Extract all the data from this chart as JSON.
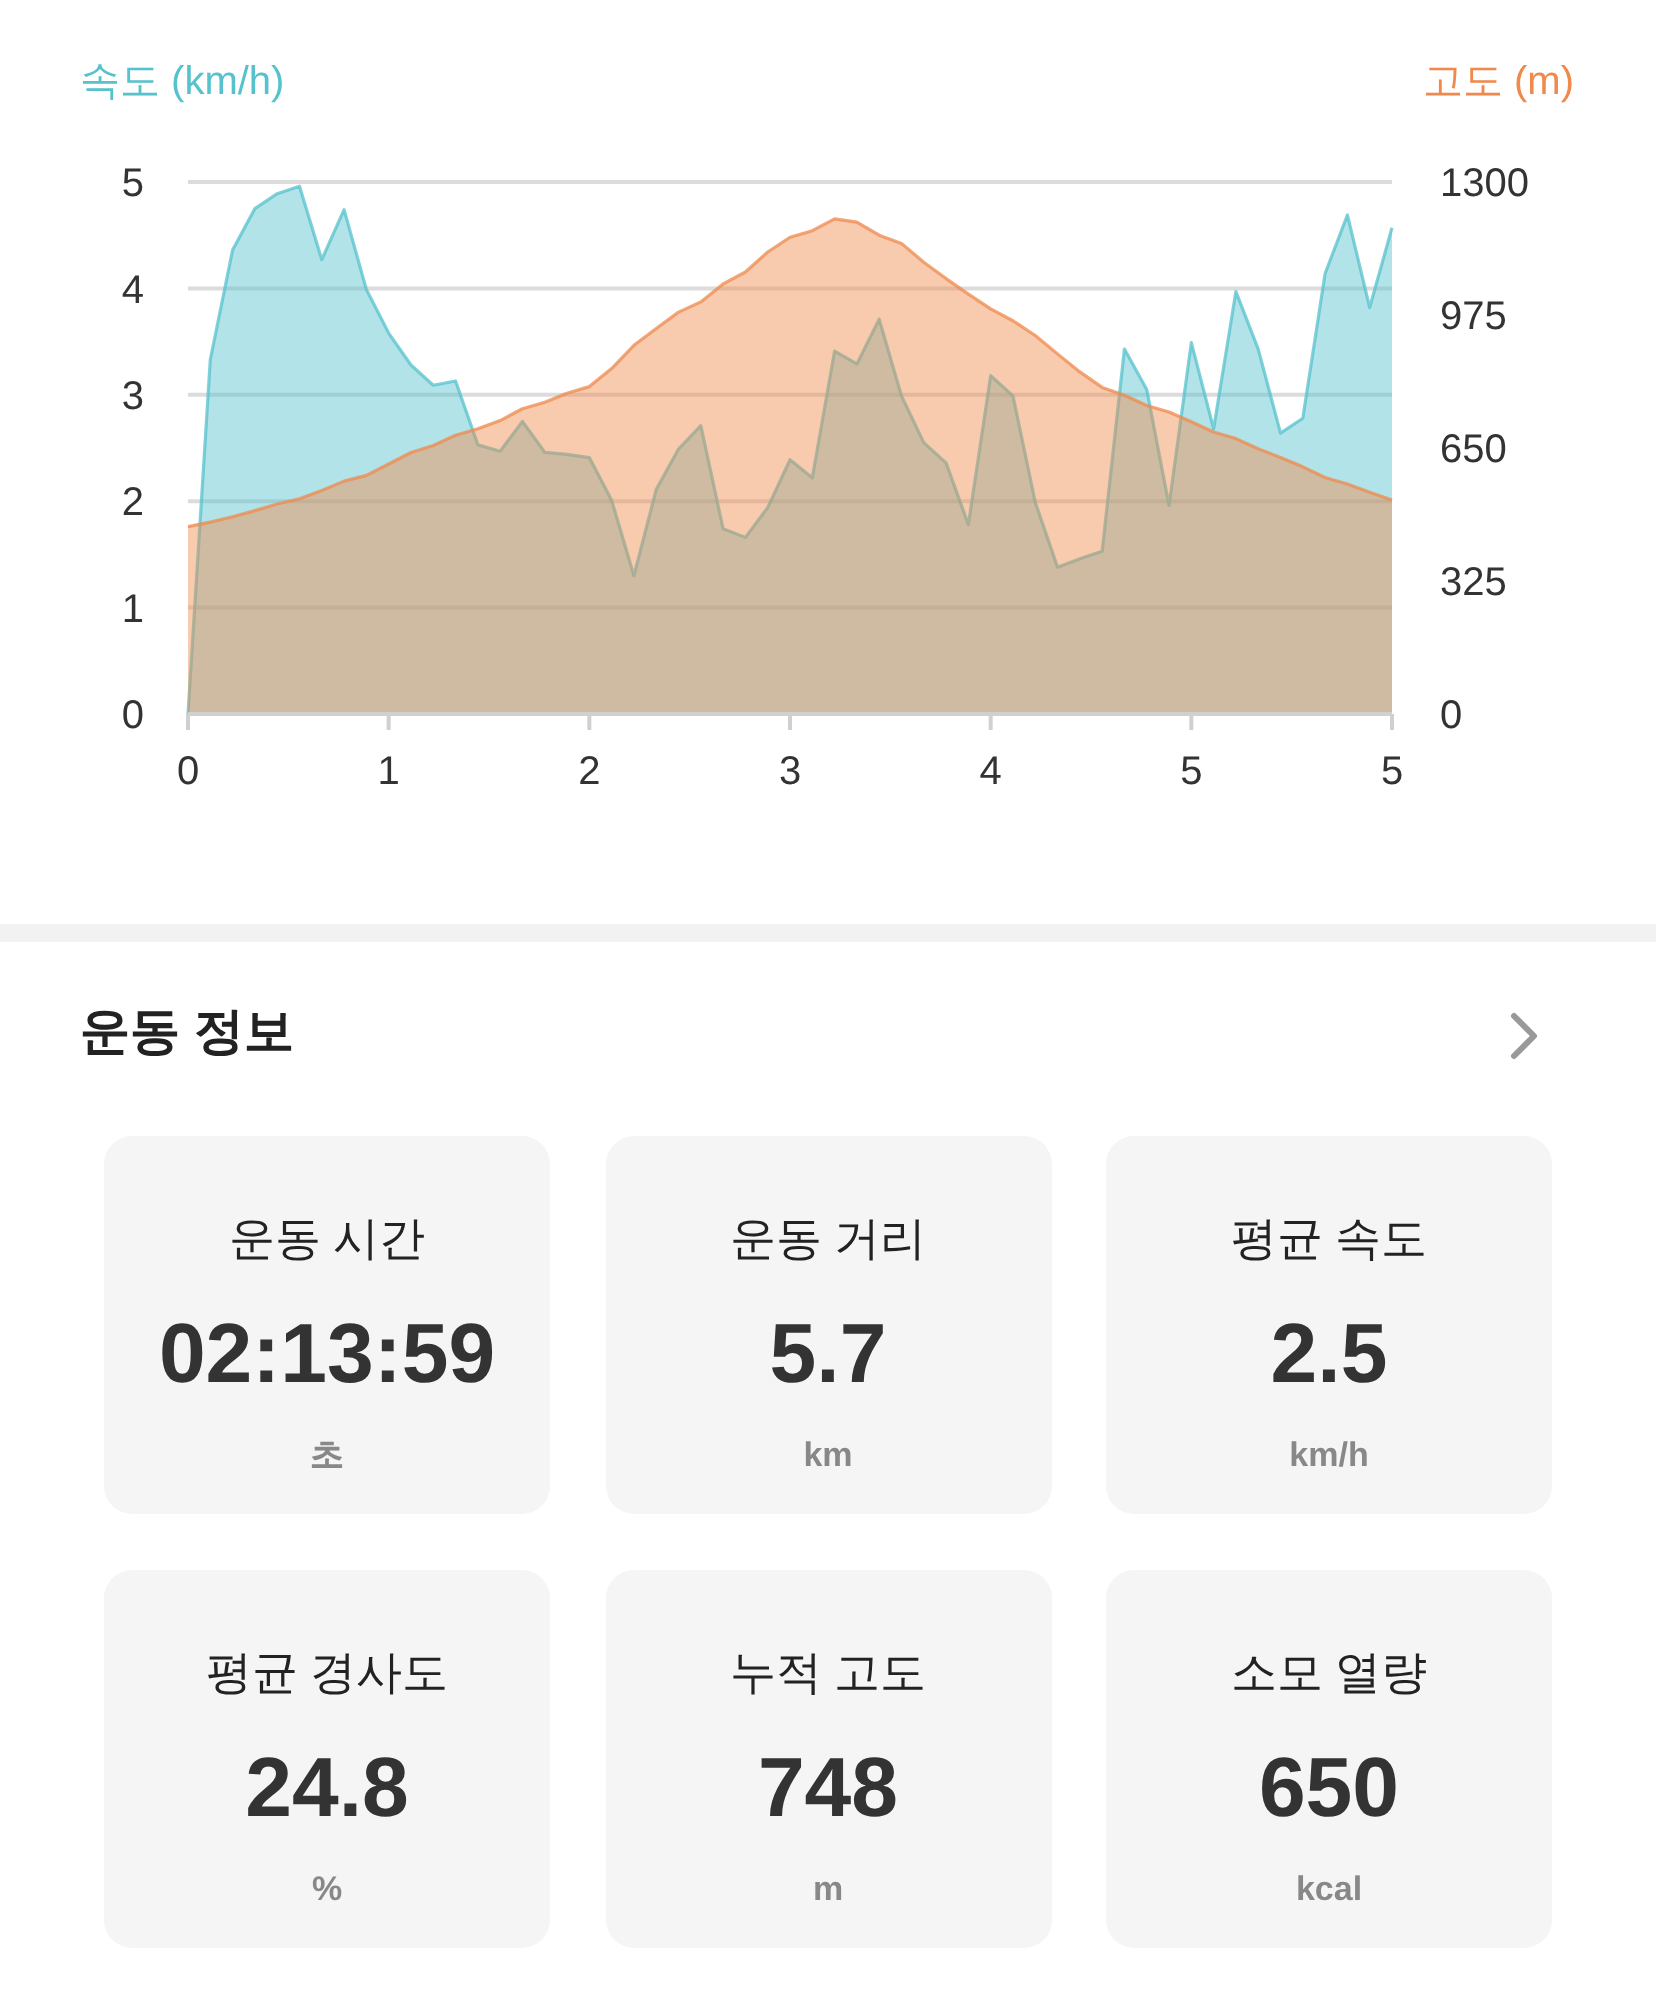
{
  "chart_data": [
    {
      "type": "area",
      "ylabel": "속도 (km/h)",
      "y2label": "고도 (m)",
      "categories": [
        "0",
        null,
        null,
        null,
        null,
        null,
        null,
        null,
        null,
        "1",
        null,
        null,
        null,
        null,
        null,
        null,
        null,
        null,
        "2",
        null,
        null,
        null,
        null,
        null,
        null,
        null,
        null,
        "3",
        null,
        null,
        null,
        null,
        null,
        null,
        null,
        null,
        "4",
        null,
        null,
        null,
        null,
        null,
        null,
        null,
        null,
        "5",
        null,
        null,
        null,
        null,
        null,
        null,
        null,
        null,
        "5"
      ],
      "ylim": [
        0,
        5
      ],
      "yticks": [
        0,
        1,
        2,
        3,
        4,
        5
      ],
      "y2lim": [
        0,
        1300
      ],
      "y2ticks": [
        0,
        325,
        650,
        975,
        1300
      ],
      "grid": "y",
      "series": [
        {
          "color": "#55c2cc",
          "values": [
            0,
            3.33,
            4.36,
            4.75,
            4.89,
            4.96,
            4.27,
            4.74,
            3.99,
            3.58,
            3.28,
            3.09,
            3.13,
            2.53,
            2.47,
            2.75,
            2.46,
            2.44,
            2.41,
            2.01,
            1.3,
            2.11,
            2.49,
            2.71,
            1.74,
            1.66,
            1.94,
            2.39,
            2.22,
            3.41,
            3.29,
            3.71,
            2.99,
            2.55,
            2.36,
            1.78,
            3.18,
            2.99,
            1.99,
            1.38,
            1.46,
            1.53,
            3.43,
            3.05,
            1.96,
            3.49,
            2.68,
            3.97,
            3.43,
            2.64,
            2.78,
            4.14,
            4.69,
            3.82,
            4.57
          ]
        },
        {
          "color": "#ef8a4c",
          "axis": "y2",
          "values": [
            458,
            469,
            482,
            497,
            513,
            526,
            546,
            569,
            583,
            611,
            639,
            656,
            681,
            697,
            717,
            746,
            762,
            784,
            800,
            844,
            901,
            942,
            982,
            1007,
            1051,
            1080,
            1129,
            1165,
            1181,
            1210,
            1202,
            1170,
            1150,
            1104,
            1064,
            1026,
            990,
            961,
            925,
            880,
            836,
            798,
            779,
            754,
            738,
            714,
            689,
            673,
            648,
            627,
            604,
            578,
            562,
            542,
            523
          ]
        }
      ]
    },
    {
      "type": "other",
      "title": "운동 정보",
      "annotations": [
        "운동 시간",
        "02:13:59",
        "초",
        "운동 거리",
        "5.7",
        "km",
        "평균 속도",
        "2.5",
        "km/h",
        "평균 경사도",
        "24.8",
        "%",
        "누적 고도",
        "748",
        "m",
        "소모 열량",
        "650",
        "kcal"
      ]
    }
  ]
}
